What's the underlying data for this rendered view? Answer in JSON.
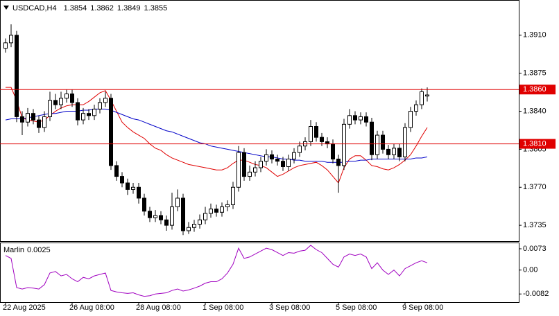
{
  "chart_data": [
    {
      "type": "candlestick",
      "title": "USDCAD,H4",
      "categories": [
        "22 Aug 2025",
        null,
        null,
        null,
        null,
        null,
        null,
        null,
        null,
        null,
        null,
        null,
        "26 Aug 08:00",
        null,
        null,
        null,
        null,
        null,
        null,
        null,
        null,
        null,
        null,
        null,
        "28 Aug 08:00",
        null,
        null,
        null,
        null,
        null,
        null,
        null,
        null,
        null,
        null,
        null,
        "1 Sep 08:00",
        null,
        null,
        null,
        null,
        null,
        null,
        null,
        null,
        null,
        null,
        null,
        "3 Sep 08:00",
        null,
        null,
        null,
        null,
        null,
        null,
        null,
        null,
        null,
        null,
        null,
        "5 Sep 08:00",
        null,
        null,
        null,
        null,
        null,
        null,
        null,
        null,
        null,
        null,
        null,
        "9 Sep 08:00",
        null,
        null,
        null,
        null
      ],
      "open": [
        1.3898,
        1.3903,
        1.391,
        1.3835,
        1.383,
        1.3838,
        1.3832,
        1.3825,
        1.3835,
        1.385,
        1.3846,
        1.3852,
        1.3856,
        1.3848,
        1.3832,
        1.3838,
        1.3836,
        1.3842,
        1.3848,
        1.3852,
        1.379,
        1.378,
        1.3774,
        1.3768,
        1.377,
        1.376,
        1.3748,
        1.3742,
        1.3744,
        1.374,
        1.3735,
        1.3752,
        1.376,
        1.373,
        1.3733,
        1.3736,
        1.374,
        1.3746,
        1.375,
        1.3747,
        1.3752,
        1.3754,
        1.377,
        1.3802,
        1.378,
        1.3784,
        1.3788,
        1.3794,
        1.38,
        1.3796,
        1.3794,
        1.3789,
        1.3796,
        1.3802,
        1.3808,
        1.3812,
        1.3826,
        1.3816,
        1.3812,
        1.381,
        1.3796,
        1.379,
        1.3828,
        1.3836,
        1.3832,
        1.3835,
        1.383,
        1.38,
        1.3818,
        1.3805,
        1.38,
        1.3806,
        1.3798,
        1.3825,
        1.384,
        1.3846,
        1.3854
      ],
      "high": [
        1.3907,
        1.392,
        1.3914,
        1.384,
        1.3843,
        1.3842,
        1.3836,
        1.384,
        1.3858,
        1.3856,
        1.3858,
        1.386,
        1.386,
        1.3852,
        1.3843,
        1.3842,
        1.3846,
        1.3852,
        1.3858,
        1.3856,
        1.3794,
        1.3784,
        1.3778,
        1.3774,
        1.3774,
        1.3764,
        1.3752,
        1.3749,
        1.3748,
        1.3744,
        1.3765,
        1.3768,
        1.3764,
        1.3738,
        1.374,
        1.3745,
        1.3752,
        1.3755,
        1.3754,
        1.3756,
        1.3758,
        1.3775,
        1.3808,
        1.3806,
        1.379,
        1.3794,
        1.3798,
        1.3805,
        1.3804,
        1.38,
        1.3798,
        1.38,
        1.3806,
        1.3812,
        1.3816,
        1.3832,
        1.383,
        1.382,
        1.3816,
        1.3814,
        1.38,
        1.3833,
        1.3842,
        1.384,
        1.3839,
        1.3839,
        1.3834,
        1.3822,
        1.3822,
        1.3809,
        1.381,
        1.381,
        1.3829,
        1.3844,
        1.385,
        1.3861,
        1.3862
      ],
      "low": [
        1.3894,
        1.3899,
        1.383,
        1.3818,
        1.3826,
        1.3828,
        1.382,
        1.3821,
        1.3831,
        1.3842,
        1.3842,
        1.3848,
        1.3844,
        1.3827,
        1.3828,
        1.3832,
        1.3832,
        1.3838,
        1.3844,
        1.3786,
        1.3776,
        1.377,
        1.3763,
        1.3764,
        1.3755,
        1.3744,
        1.3738,
        1.3738,
        1.3736,
        1.373,
        1.3731,
        1.3748,
        1.3726,
        1.3727,
        1.3729,
        1.3732,
        1.3736,
        1.3742,
        1.3743,
        1.3743,
        1.3748,
        1.375,
        1.3766,
        1.3776,
        1.3776,
        1.378,
        1.3784,
        1.379,
        1.3792,
        1.379,
        1.3785,
        1.3785,
        1.3792,
        1.3798,
        1.3804,
        1.3808,
        1.3812,
        1.3808,
        1.3806,
        1.3792,
        1.3765,
        1.3786,
        1.3824,
        1.3828,
        1.3828,
        1.3826,
        1.3795,
        1.3796,
        1.3801,
        1.3796,
        1.3796,
        1.3794,
        1.3794,
        1.3821,
        1.3836,
        1.3842,
        1.3849
      ],
      "close": [
        1.3903,
        1.391,
        1.3835,
        1.383,
        1.3838,
        1.3832,
        1.3825,
        1.3835,
        1.385,
        1.3846,
        1.3852,
        1.3856,
        1.3848,
        1.3832,
        1.3838,
        1.3836,
        1.3842,
        1.3848,
        1.3852,
        1.379,
        1.378,
        1.3774,
        1.3768,
        1.377,
        1.376,
        1.3748,
        1.3742,
        1.3744,
        1.374,
        1.3735,
        1.3752,
        1.376,
        1.373,
        1.3733,
        1.3736,
        1.374,
        1.3746,
        1.375,
        1.3747,
        1.3752,
        1.3754,
        1.377,
        1.3802,
        1.378,
        1.3784,
        1.3788,
        1.3794,
        1.38,
        1.3796,
        1.3794,
        1.3789,
        1.3796,
        1.3802,
        1.3808,
        1.3812,
        1.3826,
        1.3816,
        1.3812,
        1.381,
        1.3796,
        1.379,
        1.3828,
        1.3836,
        1.3832,
        1.3835,
        1.383,
        1.38,
        1.3818,
        1.3805,
        1.38,
        1.3806,
        1.3798,
        1.3825,
        1.384,
        1.3846,
        1.3858,
        1.3855
      ],
      "series": [
        {
          "color": "#e00000",
          "values": [
            1.3862,
            1.3862,
            1.385,
            1.3834,
            1.3832,
            1.3831,
            1.383,
            1.3832,
            1.3836,
            1.384,
            1.3843,
            1.3845,
            1.3846,
            1.3846,
            1.3846,
            1.3849,
            1.3853,
            1.3857,
            1.3859,
            1.385,
            1.384,
            1.383,
            1.3825,
            1.3821,
            1.3818,
            1.3815,
            1.381,
            1.3806,
            1.3804,
            1.38,
            1.3797,
            1.3795,
            1.3793,
            1.3791,
            1.379,
            1.3789,
            1.3788,
            1.3787,
            1.3786,
            1.3786,
            1.3788,
            1.3792,
            1.3795,
            1.3795,
            1.3793,
            1.3791,
            1.379,
            1.3788,
            1.3784,
            1.378,
            1.3782,
            1.3785,
            1.3788,
            1.379,
            1.3791,
            1.3792,
            1.3793,
            1.379,
            1.3786,
            1.378,
            1.3774,
            1.3788,
            1.3796,
            1.3799,
            1.3799,
            1.3795,
            1.379,
            1.3789,
            1.3787,
            1.3786,
            1.3788,
            1.3791,
            1.3795,
            1.38,
            1.3808,
            1.3817,
            1.3825
          ]
        },
        {
          "color": "#0000c8",
          "values": [
            1.3832,
            1.3833,
            1.3833,
            1.3833,
            1.3834,
            1.3835,
            1.3836,
            1.3837,
            1.3838,
            1.3838,
            1.3839,
            1.384,
            1.384,
            1.384,
            1.3841,
            1.3841,
            1.3842,
            1.3842,
            1.3842,
            1.3841,
            1.3839,
            1.3837,
            1.3835,
            1.3833,
            1.3832,
            1.383,
            1.3828,
            1.3826,
            1.3824,
            1.3822,
            1.3821,
            1.3819,
            1.3817,
            1.3815,
            1.3813,
            1.3811,
            1.381,
            1.3808,
            1.3807,
            1.3806,
            1.3805,
            1.3804,
            1.3803,
            1.3802,
            1.3801,
            1.38,
            1.3799,
            1.3798,
            1.3798,
            1.3797,
            1.3796,
            1.3796,
            1.3795,
            1.3795,
            1.3794,
            1.3794,
            1.3794,
            1.3794,
            1.3793,
            1.3793,
            1.3793,
            1.3793,
            1.3794,
            1.3794,
            1.3795,
            1.3795,
            1.3796,
            1.3796,
            1.3796,
            1.3796,
            1.3796,
            1.3796,
            1.3796,
            1.3796,
            1.3797,
            1.3797,
            1.3798
          ]
        }
      ],
      "hlines": [
        {
          "value": 1.386,
          "label": "1.3860",
          "color": "#e00000"
        },
        {
          "value": 1.381,
          "label": "1.3810",
          "color": "#e00000"
        }
      ],
      "ylim": [
        1.37204,
        1.39418
      ],
      "yticks": [
        {
          "value": 1.391,
          "label": "1.3910"
        },
        1.3875,
        {
          "value": 1.384,
          "label": "1.3840"
        },
        1.3805,
        {
          "value": 1.377,
          "label": "1.3770"
        },
        1.3735
      ]
    },
    {
      "type": "line",
      "title": "Marlin",
      "color": "#a000c0",
      "values": [
        0.005,
        0.004,
        -0.006,
        -0.0065,
        -0.006,
        -0.0062,
        -0.0065,
        -0.005,
        -0.001,
        -0.0005,
        -0.002,
        -0.0015,
        -0.003,
        -0.004,
        -0.0025,
        -0.003,
        -0.002,
        -0.0015,
        -0.001,
        -0.007,
        -0.0075,
        -0.0078,
        -0.008,
        -0.0078,
        -0.0085,
        -0.009,
        -0.0088,
        -0.0082,
        -0.008,
        -0.0078,
        -0.007,
        -0.0065,
        -0.0072,
        -0.0068,
        -0.0062,
        -0.0055,
        -0.0045,
        -0.004,
        -0.004,
        -0.003,
        -0.001,
        0.002,
        0.0075,
        0.004,
        0.0045,
        0.0055,
        0.0065,
        0.0075,
        0.007,
        0.006,
        0.005,
        0.006,
        0.0058,
        0.0065,
        0.0068,
        0.0085,
        0.007,
        0.006,
        0.004,
        0.002,
        0.001,
        0.0045,
        0.0055,
        0.005,
        0.0055,
        0.0045,
        0.0005,
        0.0025,
        0.0,
        -0.0015,
        0.0,
        -0.002,
        0.0005,
        0.0015,
        0.0025,
        0.0032,
        0.0025
      ],
      "ylim": [
        -0.011,
        0.0092
      ],
      "yticks": [
        0.0073,
        {
          "value": 0,
          "label": "0.00"
        },
        -0.0082
      ]
    }
  ]
}
